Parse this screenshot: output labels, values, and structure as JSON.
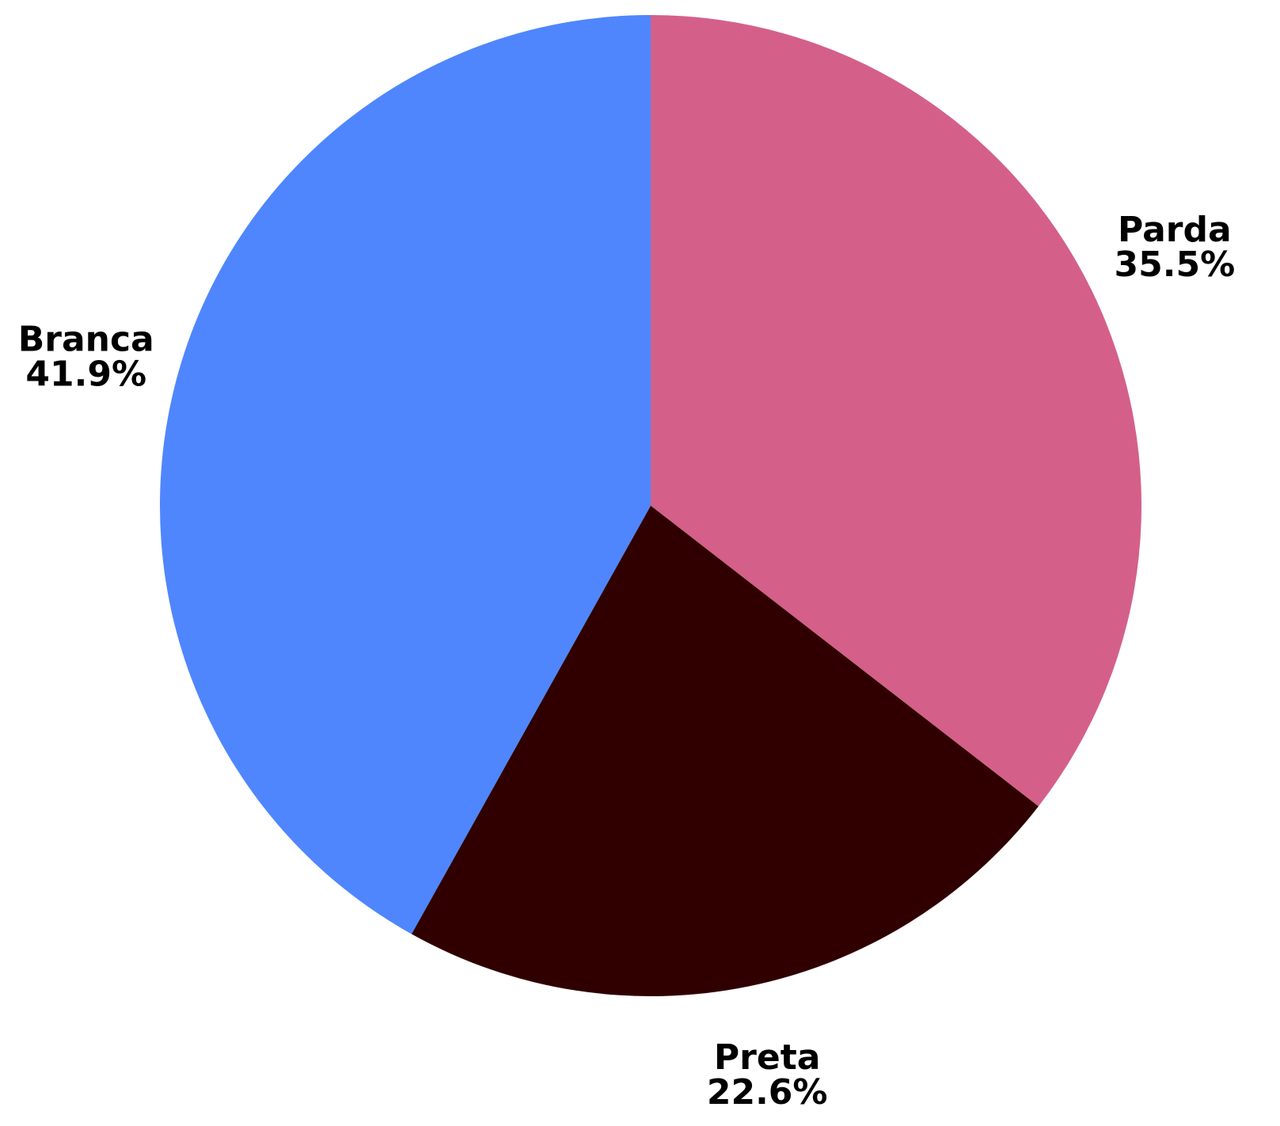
{
  "chart_data": {
    "type": "pie",
    "categories": [
      "Parda",
      "Preta",
      "Branca"
    ],
    "values": [
      35.5,
      22.6,
      41.9
    ],
    "value_labels": [
      "35.5%",
      "22.6%",
      "41.9%"
    ],
    "colors": [
      "#d4608a",
      "#300000",
      "#4f86fe"
    ]
  }
}
